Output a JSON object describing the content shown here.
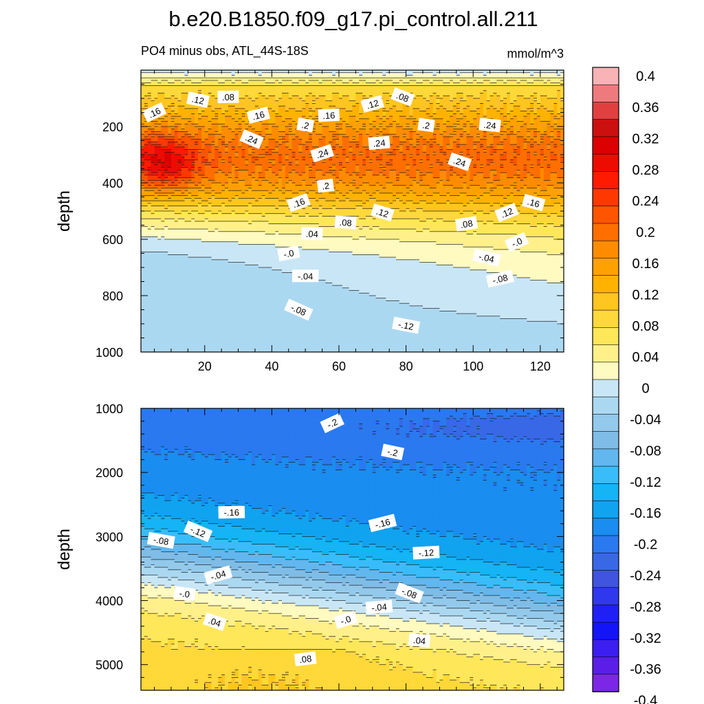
{
  "header": {
    "title": "b.e20.B1850.f09_g17.pi_control.all.211",
    "subtitle": "PO4 minus obs, ATL_44S-18S",
    "units": "mmol/m^3"
  },
  "chart_data": [
    {
      "type": "heatmap",
      "panel": "upper",
      "ylabel": "depth",
      "xlim": [
        1,
        127
      ],
      "ylim": [
        0,
        1000
      ],
      "y_inverted": true,
      "x_ticks": [
        20,
        40,
        60,
        80,
        100,
        120
      ],
      "x_tick_labels": [
        "20",
        "40",
        "60",
        "80",
        "100",
        "120"
      ],
      "y_ticks": [
        200,
        400,
        600,
        800,
        1000
      ],
      "y_tick_labels": [
        "200",
        "400",
        "600",
        "800",
        "1000"
      ],
      "field_description": "positive anomaly core (~0.3) near 300-350 m, crossing zero near 600-680 m, negative (~-0.14) at 1000 m",
      "contour_labels": [
        {
          "text": ".16",
          "x": 5,
          "y": 150
        },
        {
          "text": ".12",
          "x": 18,
          "y": 105
        },
        {
          "text": ".08",
          "x": 27,
          "y": 95
        },
        {
          "text": ".16",
          "x": 36,
          "y": 160
        },
        {
          "text": ".24",
          "x": 34,
          "y": 245
        },
        {
          "text": ".2",
          "x": 50,
          "y": 195
        },
        {
          "text": ".16",
          "x": 57,
          "y": 160
        },
        {
          "text": ".12",
          "x": 70,
          "y": 120
        },
        {
          "text": ".08",
          "x": 79,
          "y": 95
        },
        {
          "text": ".2",
          "x": 86,
          "y": 195
        },
        {
          "text": ".24",
          "x": 72,
          "y": 258
        },
        {
          "text": ".24",
          "x": 55,
          "y": 295
        },
        {
          "text": ".24",
          "x": 96,
          "y": 325
        },
        {
          "text": ".24",
          "x": 105,
          "y": 195
        },
        {
          "text": ".2",
          "x": 56,
          "y": 410
        },
        {
          "text": ".16",
          "x": 48,
          "y": 470
        },
        {
          "text": ".12",
          "x": 73,
          "y": 505
        },
        {
          "text": ".08",
          "x": 62,
          "y": 540
        },
        {
          "text": ".08",
          "x": 98,
          "y": 545
        },
        {
          "text": ".12",
          "x": 110,
          "y": 505
        },
        {
          "text": ".16",
          "x": 118,
          "y": 470
        },
        {
          "text": ".04",
          "x": 52,
          "y": 580
        },
        {
          "text": "-.0",
          "x": 45,
          "y": 650
        },
        {
          "text": "-.0",
          "x": 113,
          "y": 610
        },
        {
          "text": "-.04",
          "x": 104,
          "y": 665
        },
        {
          "text": "-.04",
          "x": 50,
          "y": 730
        },
        {
          "text": "-.08",
          "x": 108,
          "y": 740
        },
        {
          "text": "-.08",
          "x": 48,
          "y": 850
        },
        {
          "text": "-.12",
          "x": 80,
          "y": 905
        }
      ]
    },
    {
      "type": "heatmap",
      "panel": "lower",
      "ylabel": "depth",
      "xlim": [
        1,
        127
      ],
      "ylim": [
        1000,
        5400
      ],
      "y_inverted": true,
      "y_ticks": [
        1000,
        2000,
        3000,
        4000,
        5000
      ],
      "y_tick_labels": [
        "1000",
        "2000",
        "3000",
        "4000",
        "5000"
      ],
      "field_description": "negative anomaly (~-0.2) at 1000-2000 m, increasing with depth, crossing zero near 4000-4600 m, positive (~0.08) near 5000 m",
      "contour_labels": [
        {
          "text": "-.2",
          "x": 58,
          "y": 1230
        },
        {
          "text": "-.2",
          "x": 76,
          "y": 1680
        },
        {
          "text": "-.16",
          "x": 28,
          "y": 2620
        },
        {
          "text": "-.16",
          "x": 73,
          "y": 2790
        },
        {
          "text": "-.12",
          "x": 18,
          "y": 2920
        },
        {
          "text": "-.08",
          "x": 7,
          "y": 3060
        },
        {
          "text": "-.12",
          "x": 86,
          "y": 3250
        },
        {
          "text": "-.04",
          "x": 24,
          "y": 3600
        },
        {
          "text": "-.08",
          "x": 81,
          "y": 3880
        },
        {
          "text": "-.0",
          "x": 14,
          "y": 3890
        },
        {
          "text": "-.04",
          "x": 72,
          "y": 4100
        },
        {
          "text": "-.0",
          "x": 62,
          "y": 4300
        },
        {
          "text": ".04",
          "x": 23,
          "y": 4330
        },
        {
          "text": ".04",
          "x": 84,
          "y": 4620
        },
        {
          "text": ".08",
          "x": 50,
          "y": 4910
        }
      ]
    }
  ],
  "colorbar": {
    "labels": [
      "0.4",
      "0.36",
      "0.32",
      "0.28",
      "0.24",
      "0.2",
      "0.16",
      "0.12",
      "0.08",
      "0.04",
      "0",
      "-0.04",
      "-0.08",
      "-0.12",
      "-0.16",
      "-0.2",
      "-0.24",
      "-0.28",
      "-0.32",
      "-0.36",
      "-0.4"
    ],
    "colors": [
      "#f7b3b6",
      "#ee7a7d",
      "#e04040",
      "#cc1010",
      "#dc0000",
      "#ec0c00",
      "#ff1a00",
      "#ff3800",
      "#ff5500",
      "#ff6f00",
      "#ff8c00",
      "#ffa100",
      "#ffb300",
      "#ffc520",
      "#ffd83a",
      "#ffe75a",
      "#fff08a",
      "#fffac0",
      "#c8e6f6",
      "#abd8f1",
      "#93c9eb",
      "#7fbde7",
      "#62b7ef",
      "#38bdfa",
      "#14b4f5",
      "#10a3f0",
      "#1a8df0",
      "#2a79ef",
      "#3868e6",
      "#4054e0",
      "#2f38ec",
      "#2020f5",
      "#1414f8",
      "#3c1ef0",
      "#5a1ee8",
      "#7c26e8"
    ]
  }
}
